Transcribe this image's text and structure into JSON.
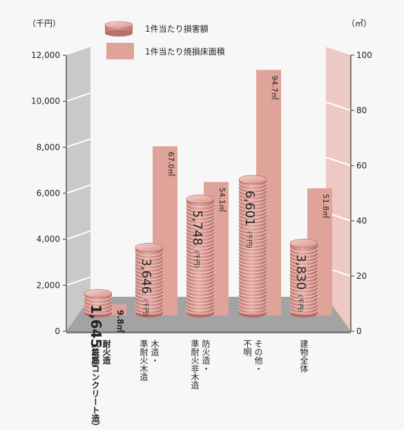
{
  "chart_data": {
    "type": "bar",
    "title": "",
    "left_unit": "（千円）",
    "right_unit": "（㎡）",
    "left_ticks": [
      "0",
      "2,000",
      "4,000",
      "6,000",
      "8,000",
      "10,000",
      "12,000"
    ],
    "right_ticks": [
      "0",
      "20",
      "40",
      "60",
      "80",
      "100"
    ],
    "ylim_left": [
      0,
      12000
    ],
    "ylim_right": [
      0,
      100
    ],
    "legend": {
      "loss_label": "1件当たり損害額",
      "area_label": "1件当たり焼損床面積",
      "placement": "top"
    },
    "categories": [
      {
        "label": "耐火造",
        "sublabel": "（鉄筋コンクリート造）",
        "highlight": true
      },
      {
        "label": "木造・準耐火木造",
        "sublabel": "",
        "highlight": false
      },
      {
        "label": "防火造・準耐火非木造",
        "sublabel": "",
        "highlight": false
      },
      {
        "label": "その他・不明",
        "sublabel": "",
        "highlight": false
      },
      {
        "label": "建物全体",
        "sublabel": "",
        "highlight": false
      }
    ],
    "series": [
      {
        "name": "1件当たり損害額",
        "axis": "left",
        "values": [
          1645,
          3646,
          5748,
          6601,
          3830
        ],
        "value_labels": [
          "1,645",
          "3,646",
          "5,748",
          "6,601",
          "3,830"
        ],
        "unit_label": "(千円)"
      },
      {
        "name": "1件当たり焼損床面積",
        "axis": "right",
        "values": [
          9.8,
          67.0,
          54.1,
          94.7,
          51.8
        ],
        "value_labels": [
          "9.8㎡",
          "67.0㎡",
          "54.1㎡",
          "94.7㎡",
          "51.8㎡"
        ]
      }
    ],
    "colors": {
      "coin": "#d6918a",
      "coin_line": "#f2d8d2",
      "coin_edge": "#b96a63",
      "area_bar": "#e0a39a",
      "highlight_text": "#8b0e1e",
      "left_wall": "#c9c9c9",
      "right_wall": "#ecc9c2",
      "floor": "#9a9a9a"
    }
  }
}
